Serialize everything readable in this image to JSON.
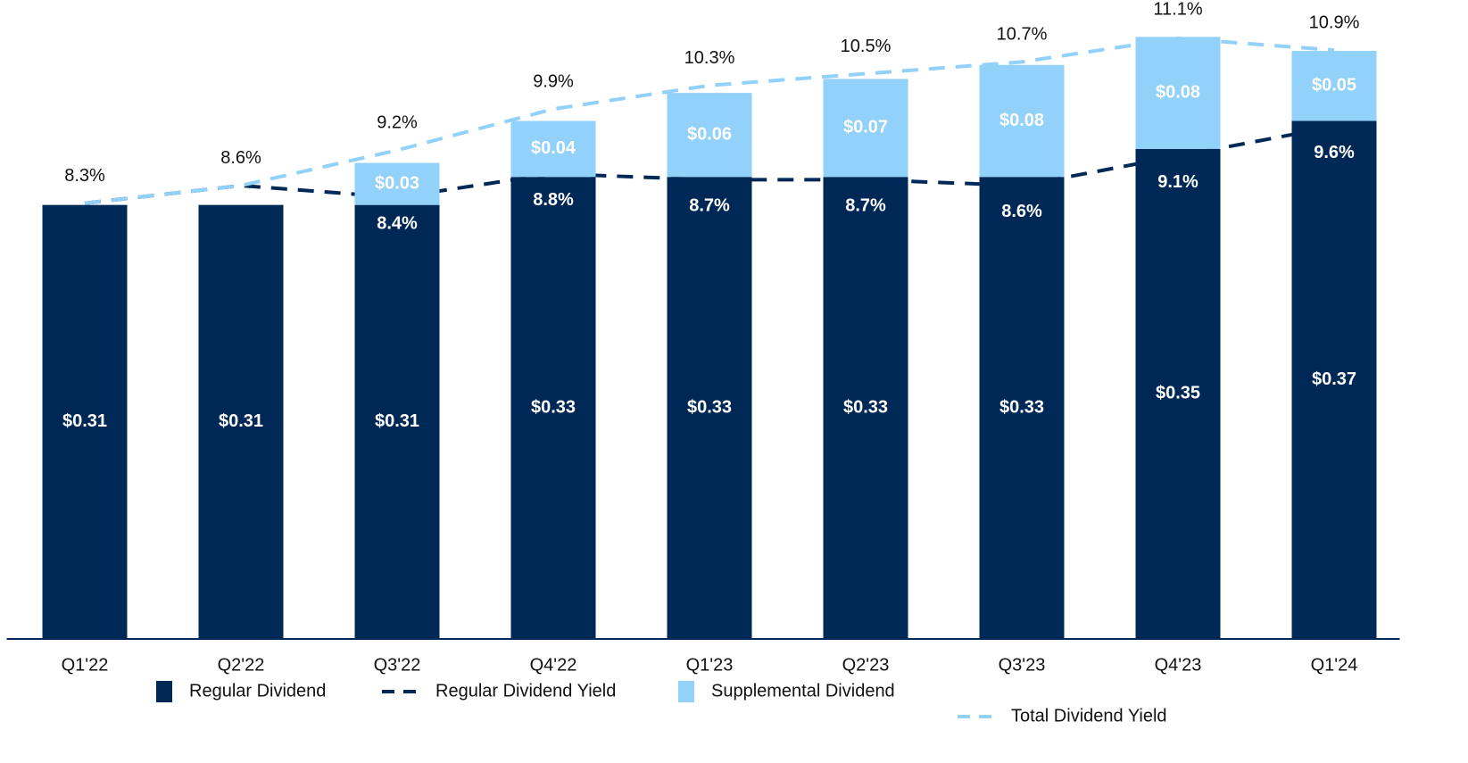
{
  "chart_data": {
    "type": "bar",
    "stacked": true,
    "categories": [
      "Q1'22",
      "Q2'22",
      "Q3'22",
      "Q4'22",
      "Q1'23",
      "Q2'23",
      "Q3'23",
      "Q4'23",
      "Q1'24"
    ],
    "ylim": [
      0,
      0.45
    ],
    "y2lim": [
      0.9,
      11.6
    ],
    "series": [
      {
        "name": "Regular Dividend",
        "type": "bar",
        "color": "#002856",
        "values": [
          0.31,
          0.31,
          0.31,
          0.33,
          0.33,
          0.33,
          0.33,
          0.35,
          0.37
        ],
        "value_labels": [
          "$0.31",
          "$0.31",
          "$0.31",
          "$0.33",
          "$0.33",
          "$0.33",
          "$0.33",
          "$0.35",
          "$0.37"
        ]
      },
      {
        "name": "Regular Dividend Yield",
        "type": "line",
        "axis": "y2",
        "dashed": true,
        "color": "#002856",
        "values": [
          8.3,
          8.6,
          8.4,
          8.8,
          8.7,
          8.7,
          8.6,
          9.1,
          9.6
        ],
        "value_labels": [
          null,
          null,
          "8.4%",
          "8.8%",
          "8.7%",
          "8.7%",
          "8.6%",
          "9.1%",
          "9.6%"
        ]
      },
      {
        "name": "Supplemental Dividend",
        "type": "bar",
        "color": "#92d1fa",
        "values": [
          null,
          null,
          0.03,
          0.04,
          0.06,
          0.07,
          0.08,
          0.08,
          0.05
        ],
        "value_labels": [
          null,
          null,
          "$0.03",
          "$0.04",
          "$0.06",
          "$0.07",
          "$0.08",
          "$0.08",
          "$0.05"
        ]
      },
      {
        "name": "Total Dividend Yield",
        "type": "line",
        "axis": "y2",
        "dashed": true,
        "color": "#92d1fa",
        "values": [
          8.3,
          8.6,
          9.2,
          9.9,
          10.3,
          10.5,
          10.7,
          11.1,
          10.9
        ],
        "value_labels": [
          "8.3%",
          "8.6%",
          "9.2%",
          "9.9%",
          "10.3%",
          "10.5%",
          "10.7%",
          "11.1%",
          "10.9%"
        ]
      }
    ]
  }
}
